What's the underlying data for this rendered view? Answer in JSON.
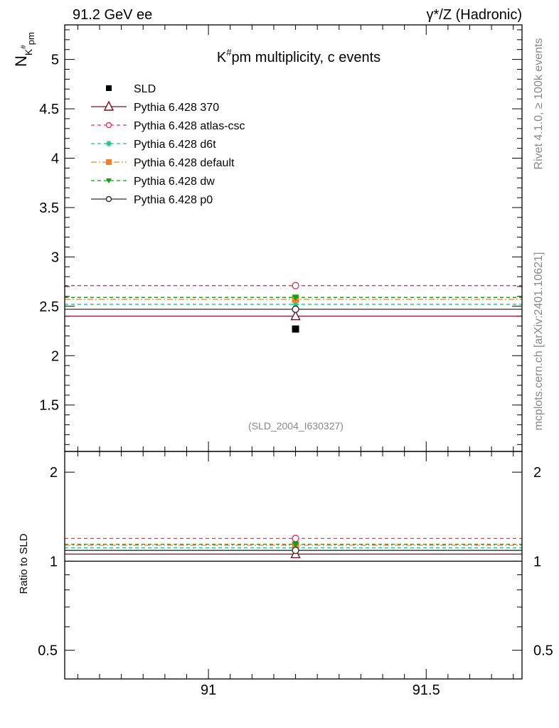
{
  "header": {
    "left_label": "91.2 GeV ee",
    "right_label": "γ*/Z (Hadronic)"
  },
  "side": {
    "rivet_text": "Rivet 4.1.0, ≥ 100k events",
    "mcplots_text": "mcplots.cern.ch [arXiv:2401.10621]"
  },
  "analysis_id": "(SLD_2004_I630327)",
  "chart_data": [
    {
      "type": "scatter",
      "title": "K#pm multiplicity, c events",
      "title_main": "K",
      "title_sup": "#",
      "title_rest": "pm multiplicity, c events",
      "ylabel_main": "N",
      "ylabel_sub": "K",
      "ylabel_subsup": "#",
      "ylabel_subsub": "pm",
      "xlim": [
        90.67,
        91.72
      ],
      "ylim": [
        1.03,
        5.35
      ],
      "x_bin": [
        90.67,
        91.72
      ],
      "x_center": 91.2,
      "yticks_major": [
        1.5,
        2,
        2.5,
        3,
        3.5,
        4,
        4.5,
        5
      ],
      "ytick_labels": [
        "1.5",
        "2",
        "2.5",
        "3",
        "3.5",
        "4",
        "4.5",
        "5"
      ],
      "legend_position": "top-left",
      "series": [
        {
          "name": "SLD",
          "value": 2.27,
          "color": "#000000",
          "marker": "filled-square",
          "line": "none"
        },
        {
          "name": "Pythia 6.428 370",
          "value": 2.4,
          "color": "#7a1020",
          "marker": "open-triangle",
          "line": "solid"
        },
        {
          "name": "Pythia 6.428 atlas-csc",
          "value": 2.71,
          "color": "#e8305a",
          "marker": "open-circle",
          "line": "dashed"
        },
        {
          "name": "Pythia 6.428 d6t",
          "value": 2.52,
          "color": "#20c080",
          "marker": "star",
          "line": "dashed"
        },
        {
          "name": "Pythia 6.428 default",
          "value": 2.57,
          "color": "#f08030",
          "marker": "filled-square",
          "line": "dashdot"
        },
        {
          "name": "Pythia 6.428 dw",
          "value": 2.59,
          "color": "#10a010",
          "marker": "filled-triangle-down",
          "line": "dashed"
        },
        {
          "name": "Pythia 6.428 p0",
          "value": 2.47,
          "color": "#303030",
          "marker": "open-circle",
          "line": "solid"
        }
      ]
    },
    {
      "type": "scatter",
      "title": "Ratio to SLD",
      "ylabel": "Ratio to SLD",
      "ylim": [
        0.4,
        2.35
      ],
      "yticks_major": [
        0.5,
        1,
        2
      ],
      "ytick_labels": [
        "0.5",
        "1",
        "2"
      ],
      "xticks_major": [
        91,
        91.5
      ],
      "xtick_labels": [
        "91",
        "91.5"
      ],
      "reference": 1.0,
      "series": [
        {
          "name": "Pythia 6.428 370",
          "value": 1.057
        },
        {
          "name": "Pythia 6.428 atlas-csc",
          "value": 1.194
        },
        {
          "name": "Pythia 6.428 d6t",
          "value": 1.11
        },
        {
          "name": "Pythia 6.428 default",
          "value": 1.132
        },
        {
          "name": "Pythia 6.428 dw",
          "value": 1.141
        },
        {
          "name": "Pythia 6.428 p0",
          "value": 1.088
        }
      ]
    }
  ]
}
